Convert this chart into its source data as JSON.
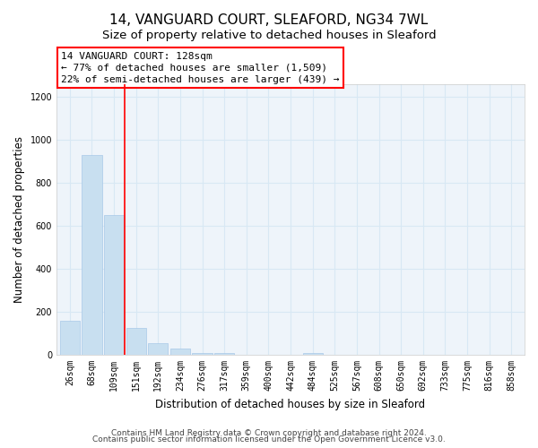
{
  "title": "14, VANGUARD COURT, SLEAFORD, NG34 7WL",
  "subtitle": "Size of property relative to detached houses in Sleaford",
  "xlabel": "Distribution of detached houses by size in Sleaford",
  "ylabel": "Number of detached properties",
  "bar_labels": [
    "26sqm",
    "68sqm",
    "109sqm",
    "151sqm",
    "192sqm",
    "234sqm",
    "276sqm",
    "317sqm",
    "359sqm",
    "400sqm",
    "442sqm",
    "484sqm",
    "525sqm",
    "567sqm",
    "608sqm",
    "650sqm",
    "692sqm",
    "733sqm",
    "775sqm",
    "816sqm",
    "858sqm"
  ],
  "bar_values": [
    160,
    930,
    650,
    125,
    55,
    28,
    10,
    10,
    0,
    0,
    0,
    10,
    0,
    0,
    0,
    0,
    0,
    0,
    0,
    0,
    0
  ],
  "bar_color": "#c8dff0",
  "bar_edge_color": "#a8c8e8",
  "redline_x": 2.5,
  "ylim": [
    0,
    1260
  ],
  "yticks": [
    0,
    200,
    400,
    600,
    800,
    1000,
    1200
  ],
  "annotation_title": "14 VANGUARD COURT: 128sqm",
  "annotation_line1": "← 77% of detached houses are smaller (1,509)",
  "annotation_line2": "22% of semi-detached houses are larger (439) →",
  "footer1": "Contains HM Land Registry data © Crown copyright and database right 2024.",
  "footer2": "Contains public sector information licensed under the Open Government Licence v3.0.",
  "grid_color": "#d8e8f4",
  "background_color": "#eef4fa",
  "title_fontsize": 11,
  "subtitle_fontsize": 9.5,
  "axis_label_fontsize": 8.5,
  "tick_fontsize": 7,
  "annotation_fontsize": 8,
  "footer_fontsize": 6.5
}
